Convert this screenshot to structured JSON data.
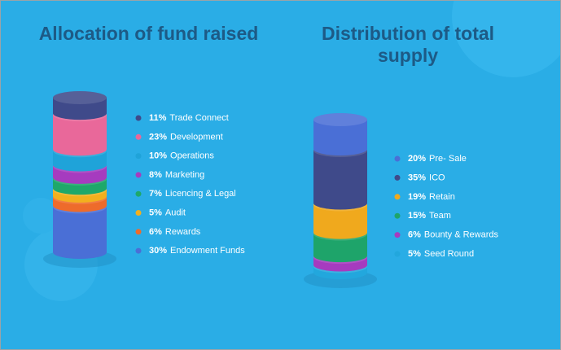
{
  "chart_data": [
    {
      "type": "cylinder",
      "title": "Allocation of fund raised",
      "categories": [
        "Trade Connect",
        "Development",
        "Operations",
        "Marketing",
        "Licencing & Legal",
        "Audit",
        "Rewards",
        "Endowment Funds"
      ],
      "values": [
        11,
        23,
        10,
        8,
        7,
        5,
        6,
        30
      ],
      "value_labels": [
        "11%",
        "23%",
        "10%",
        "8%",
        "7%",
        "5%",
        "6%",
        "30%"
      ],
      "colors": [
        "#3f4a8a",
        "#e9689a",
        "#1fa3d9",
        "#a63bbf",
        "#1ea86a",
        "#f2b01e",
        "#ee6b2b",
        "#4a6fd6"
      ]
    },
    {
      "type": "cylinder",
      "title": "Distribution of total supply",
      "categories": [
        "Pre- Sale",
        "ICO",
        "Retain",
        "Team",
        "Bounty & Rewards",
        "Seed Round"
      ],
      "values": [
        20,
        35,
        19,
        15,
        6,
        5
      ],
      "value_labels": [
        "20%",
        "35%",
        "19%",
        "15%",
        "6%",
        "5%"
      ],
      "colors": [
        "#4a6fd6",
        "#3f4a8a",
        "#f0a91d",
        "#1ea46a",
        "#a63bbf",
        "#22a7dd"
      ]
    }
  ]
}
